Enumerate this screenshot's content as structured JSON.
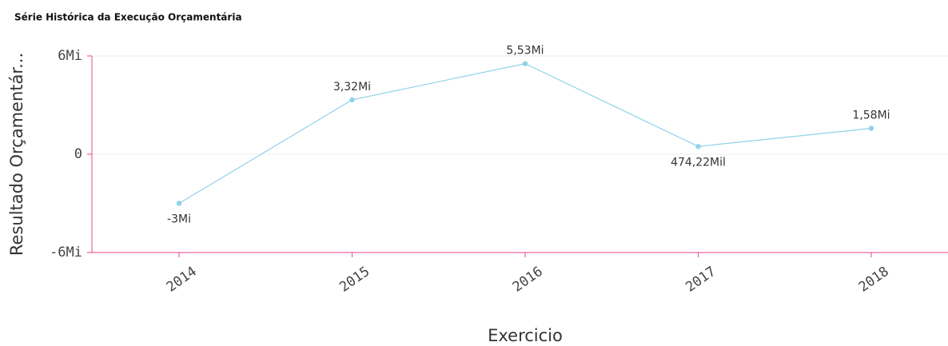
{
  "chart_data": {
    "type": "line",
    "title": "Série Histórica da Execução Orçamentária",
    "x_label": "Exercicio",
    "y_label": "Resultado Orçamentár...",
    "categories": [
      "2014",
      "2015",
      "2016",
      "2017",
      "2018"
    ],
    "series": [
      {
        "color": "#8fd3e8",
        "values": [
          -3000000,
          3320000,
          5530000,
          474220,
          1580000
        ],
        "value_labels": [
          "-3Mi",
          "3,32Mi",
          "5,53Mi",
          "474,22Mil",
          "1,58Mi"
        ]
      }
    ],
    "ylim": [
      -6000000,
      6000000
    ],
    "yticks": [
      {
        "value": -6000000,
        "label": "-6Mi"
      },
      0,
      {
        "value": 6000000,
        "label": "6Mi"
      }
    ],
    "grid": true
  }
}
